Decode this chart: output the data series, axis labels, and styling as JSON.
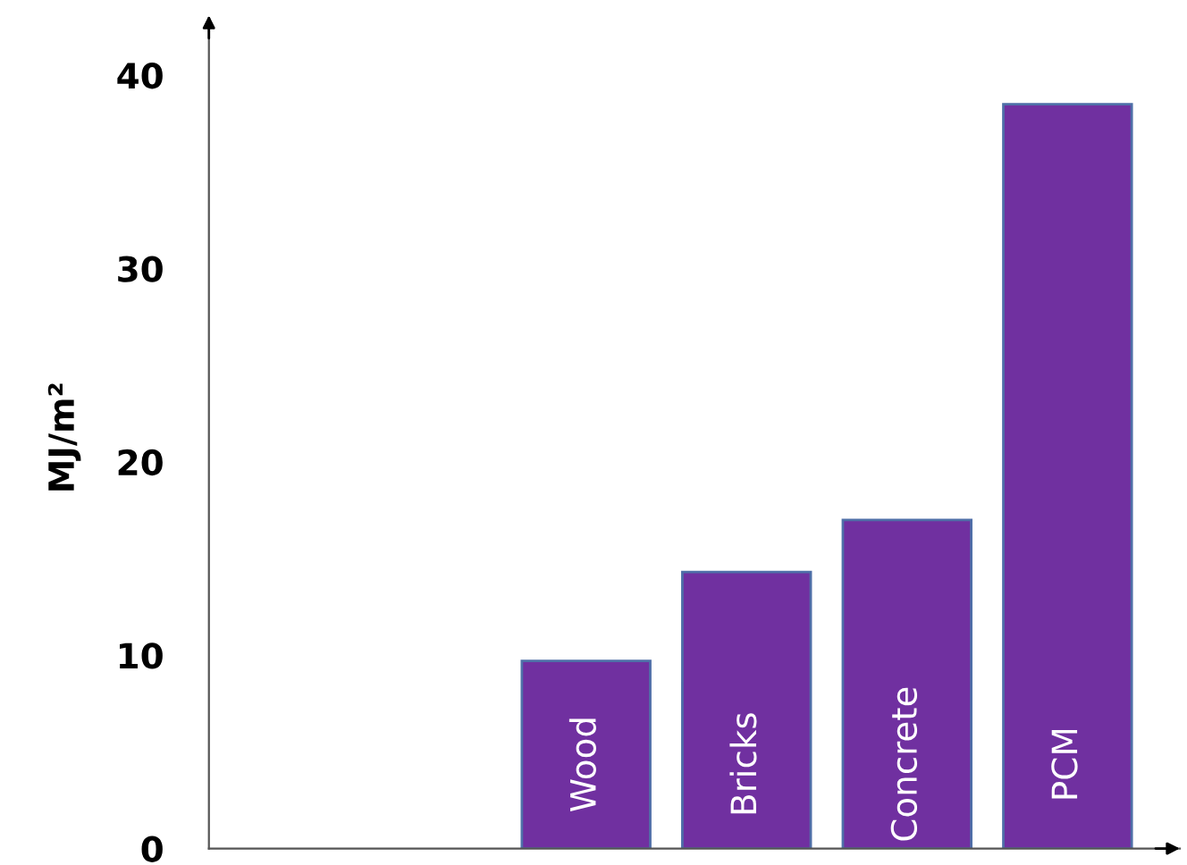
{
  "chart_data": {
    "type": "bar",
    "ylabel": "MJ/m²",
    "categories": [
      null,
      "Wood",
      "Bricks",
      "Concrete",
      "PCM"
    ],
    "values": [
      null,
      9.7,
      14.3,
      17,
      38.5
    ],
    "color": "#7030a0",
    "ylim": [
      0,
      42.5
    ],
    "yticks": [
      0,
      10,
      20,
      30,
      40
    ],
    "grid": false,
    "legend": false
  }
}
